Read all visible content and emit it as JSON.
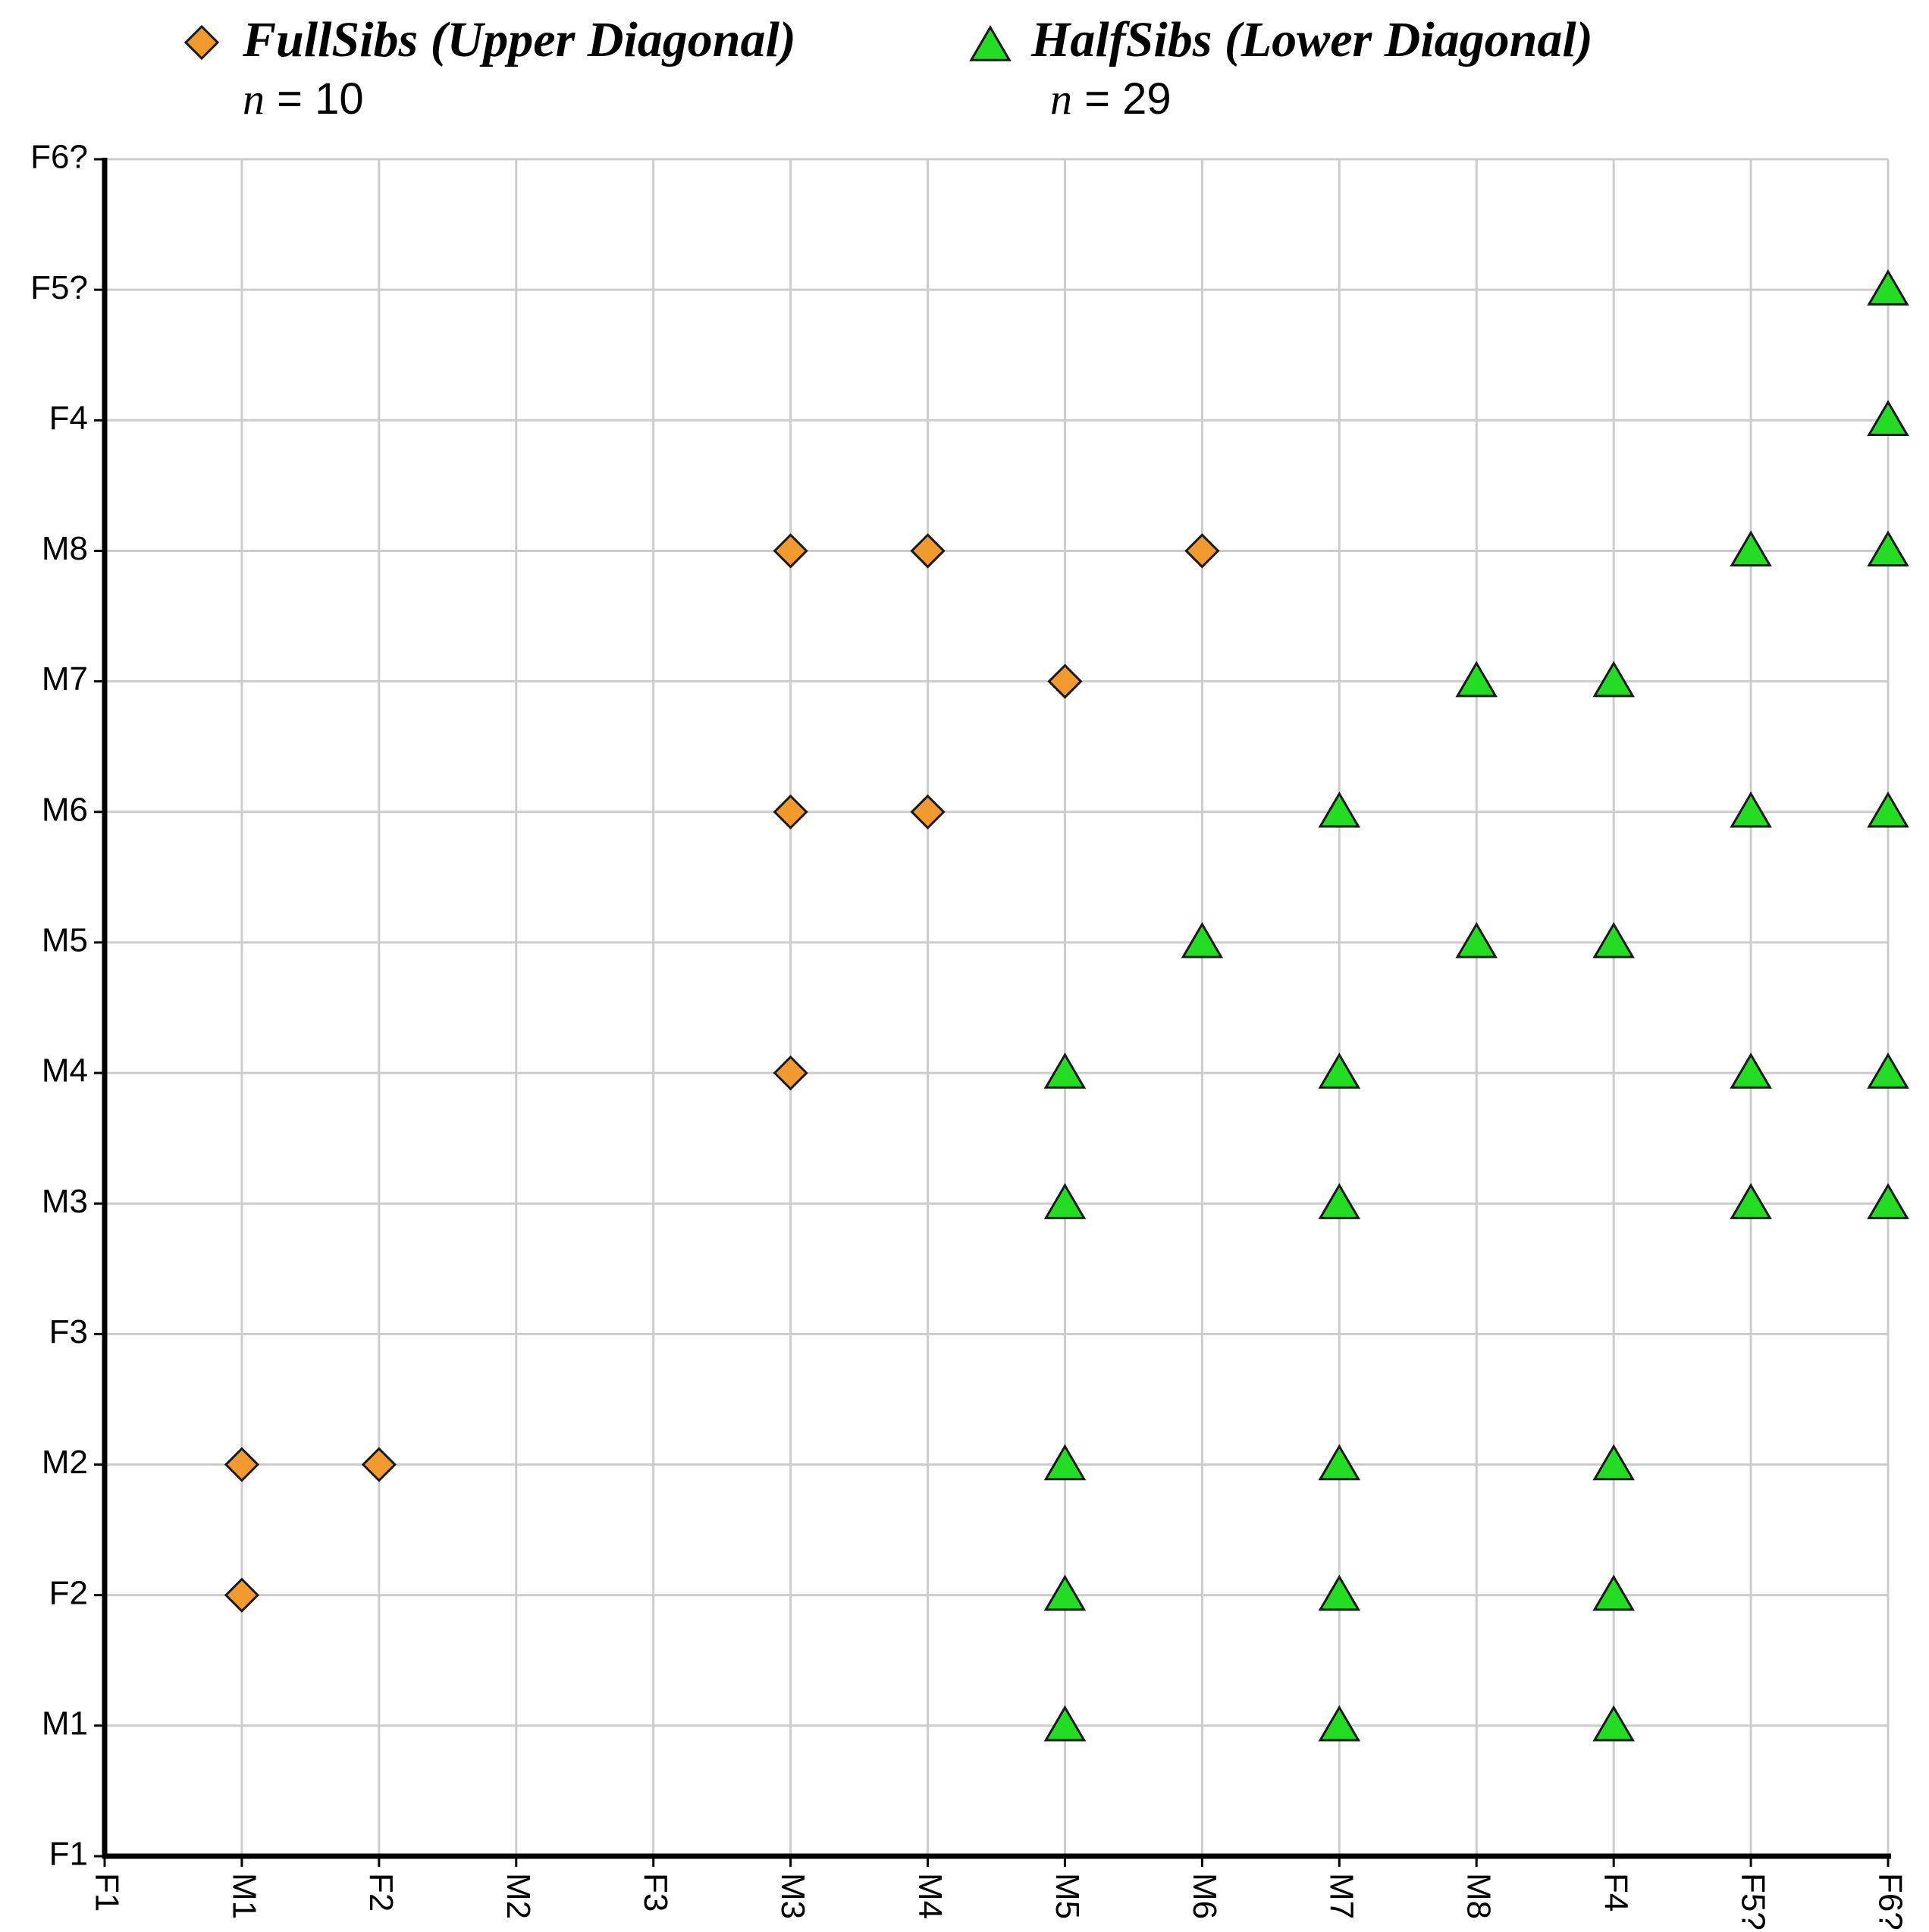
{
  "chart_data": {
    "type": "scatter",
    "x_categories": [
      "F1",
      "M1",
      "F2",
      "M2",
      "F3",
      "M3",
      "M4",
      "M5",
      "M6",
      "M7",
      "M8",
      "F4",
      "F5?",
      "F6?"
    ],
    "y_categories": [
      "F1",
      "M1",
      "F2",
      "M2",
      "F3",
      "M3",
      "M4",
      "M5",
      "M6",
      "M7",
      "M8",
      "F4",
      "F5?",
      "F6?"
    ],
    "grid": true,
    "legend_position": "top",
    "series": [
      {
        "name": "FullSibs (Upper Diagonal)",
        "n_label": "n",
        "n_eq": " = 10",
        "marker": "diamond",
        "color": "#f39a2e",
        "points": [
          {
            "x": "M1",
            "y": "F2"
          },
          {
            "x": "M1",
            "y": "M2"
          },
          {
            "x": "F2",
            "y": "M2"
          },
          {
            "x": "M3",
            "y": "M4"
          },
          {
            "x": "M3",
            "y": "M6"
          },
          {
            "x": "M3",
            "y": "M8"
          },
          {
            "x": "M4",
            "y": "M6"
          },
          {
            "x": "M4",
            "y": "M8"
          },
          {
            "x": "M5",
            "y": "M7"
          },
          {
            "x": "M6",
            "y": "M8"
          }
        ]
      },
      {
        "name": "HalfSibs (Lower Diagonal)",
        "n_label": "n",
        "n_eq": " = 29",
        "marker": "triangle",
        "color": "#22dd22",
        "points": [
          {
            "x": "M5",
            "y": "M1"
          },
          {
            "x": "M5",
            "y": "F2"
          },
          {
            "x": "M5",
            "y": "M2"
          },
          {
            "x": "M5",
            "y": "M3"
          },
          {
            "x": "M5",
            "y": "M4"
          },
          {
            "x": "M6",
            "y": "M5"
          },
          {
            "x": "M7",
            "y": "M1"
          },
          {
            "x": "M7",
            "y": "F2"
          },
          {
            "x": "M7",
            "y": "M2"
          },
          {
            "x": "M7",
            "y": "M3"
          },
          {
            "x": "M7",
            "y": "M4"
          },
          {
            "x": "M7",
            "y": "M6"
          },
          {
            "x": "M8",
            "y": "M5"
          },
          {
            "x": "M8",
            "y": "M7"
          },
          {
            "x": "F4",
            "y": "M1"
          },
          {
            "x": "F4",
            "y": "F2"
          },
          {
            "x": "F4",
            "y": "M2"
          },
          {
            "x": "F4",
            "y": "M5"
          },
          {
            "x": "F4",
            "y": "M7"
          },
          {
            "x": "F5?",
            "y": "M3"
          },
          {
            "x": "F5?",
            "y": "M4"
          },
          {
            "x": "F5?",
            "y": "M6"
          },
          {
            "x": "F5?",
            "y": "M8"
          },
          {
            "x": "F6?",
            "y": "M3"
          },
          {
            "x": "F6?",
            "y": "M4"
          },
          {
            "x": "F6?",
            "y": "M6"
          },
          {
            "x": "F6?",
            "y": "M8"
          },
          {
            "x": "F6?",
            "y": "F4"
          },
          {
            "x": "F6?",
            "y": "F5?"
          }
        ]
      }
    ]
  }
}
